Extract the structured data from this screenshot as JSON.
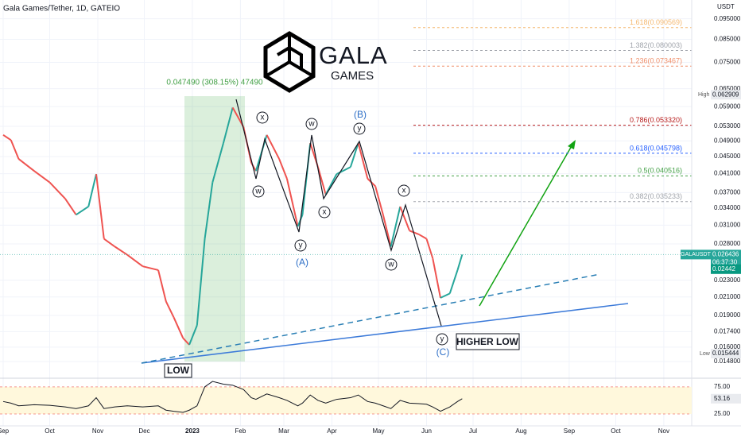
{
  "header": {
    "title": "Gala Games/Tether, 1D, GATEIO",
    "currency": "USDT"
  },
  "logo": {
    "name": "GALA",
    "sub": "GAMES"
  },
  "chart_data": [
    {
      "type": "line",
      "log_scale": true,
      "grid": true,
      "up_color": "#26a69a",
      "down_color": "#ef5350",
      "x": [
        0,
        5,
        10,
        20,
        30,
        40,
        47,
        55,
        60,
        65,
        72,
        80,
        90,
        100,
        105,
        110,
        116,
        120,
        125,
        130,
        135,
        142,
        148,
        155,
        160,
        163,
        170,
        178,
        183,
        190,
        193,
        198,
        203,
        208,
        215,
        224,
        229,
        235,
        240,
        245,
        250,
        256,
        262,
        268,
        273,
        277,
        282,
        288,
        293,
        296
      ],
      "series": [
        {
          "name": "GALAUSDT",
          "color": "#26a69a",
          "values": [
            0.0506,
            0.0492,
            0.0444,
            0.0416,
            0.0391,
            0.0358,
            0.0328,
            0.0343,
            0.0409,
            0.0288,
            0.0276,
            0.0264,
            0.0248,
            0.0243,
            0.0205,
            0.0188,
            0.0168,
            0.0162,
            0.018,
            0.0288,
            0.0391,
            0.0484,
            0.0587,
            0.0528,
            0.0435,
            0.0416,
            0.0506,
            0.0444,
            0.0399,
            0.0308,
            0.0328,
            0.0484,
            0.0425,
            0.0366,
            0.0409,
            0.0425,
            0.0484,
            0.0399,
            0.0383,
            0.0328,
            0.0276,
            0.0343,
            0.0301,
            0.0295,
            0.0288,
            0.0259,
            0.0209,
            0.0214,
            0.0243,
            0.026436
          ]
        }
      ],
      "xlim": [
        0,
        444
      ],
      "xticks": [
        {
          "value": 0,
          "label": "Sep"
        },
        {
          "value": 30,
          "label": "Oct"
        },
        {
          "value": 61,
          "label": "Nov"
        },
        {
          "value": 91,
          "label": "Dec"
        },
        {
          "value": 122,
          "label": "2023"
        },
        {
          "value": 153,
          "label": "Feb"
        },
        {
          "value": 181,
          "label": "Mar"
        },
        {
          "value": 212,
          "label": "Apr"
        },
        {
          "value": 242,
          "label": "May"
        },
        {
          "value": 273,
          "label": "Jun"
        },
        {
          "value": 303,
          "label": "Jul"
        },
        {
          "value": 334,
          "label": "Aug"
        },
        {
          "value": 365,
          "label": "Sep"
        },
        {
          "value": 395,
          "label": "Oct"
        },
        {
          "value": 426,
          "label": "Nov"
        }
      ],
      "ylim": [
        0.01387,
        0.1052
      ],
      "yticks": [
        {
          "value": 0.095,
          "label": "0.095000"
        },
        {
          "value": 0.085,
          "label": "0.085000"
        },
        {
          "value": 0.075,
          "label": "0.075000"
        },
        {
          "value": 0.065,
          "label": "0.065000"
        },
        {
          "value": 0.059,
          "label": "0.059000"
        },
        {
          "value": 0.053,
          "label": "0.053000"
        },
        {
          "value": 0.049,
          "label": "0.049000"
        },
        {
          "value": 0.045,
          "label": "0.045000"
        },
        {
          "value": 0.041,
          "label": "0.041000"
        },
        {
          "value": 0.037,
          "label": "0.037000"
        },
        {
          "value": 0.034,
          "label": "0.034000"
        },
        {
          "value": 0.031,
          "label": "0.031000"
        },
        {
          "value": 0.028,
          "label": "0.028000"
        },
        {
          "value": 0.023,
          "label": "0.023000"
        },
        {
          "value": 0.021,
          "label": "0.021000"
        },
        {
          "value": 0.019,
          "label": "0.019000"
        },
        {
          "value": 0.0174,
          "label": "0.017400"
        },
        {
          "value": 0.016,
          "label": "0.016000"
        },
        {
          "value": 0.0148,
          "label": "0.014800"
        }
      ],
      "fib_levels": [
        {
          "label": "1.618(0.090569)",
          "value": 0.090569,
          "color": "#f5b971"
        },
        {
          "label": "1.382(0.080003)",
          "value": 0.080003,
          "color": "#a0a4ab"
        },
        {
          "label": "1.236(0.073467)",
          "value": 0.073467,
          "color": "#f0906c"
        },
        {
          "label": "0.786(0.053320)",
          "value": 0.05332,
          "color": "#b71c1c"
        },
        {
          "label": "0.618(0.045798)",
          "value": 0.045798,
          "color": "#2962ff"
        },
        {
          "label": "0.5(0.040516)",
          "value": 0.040516,
          "color": "#43a047"
        },
        {
          "label": "0.382(0.035233)",
          "value": 0.035233,
          "color": "#a0a4ab"
        }
      ],
      "high": {
        "label": "High",
        "value": 0.062909
      },
      "low": {
        "label": "Low",
        "value": 0.015444
      },
      "countdown": "06:37:30",
      "ma_value": 0.02442,
      "range_note": "0.047490 (308.15%) 47490",
      "waves": {
        "circled": [
          "x",
          "w",
          "w",
          "x",
          "y",
          "y",
          "x",
          "w",
          "y"
        ],
        "degree": [
          "(A)",
          "(B)",
          "(C)"
        ]
      },
      "annotations": {
        "low": "LOW",
        "higher_low": "HIGHER LOW"
      }
    },
    {
      "type": "line",
      "x": [
        0,
        5,
        10,
        20,
        30,
        40,
        47,
        55,
        60,
        65,
        72,
        80,
        90,
        100,
        105,
        110,
        116,
        120,
        125,
        130,
        135,
        142,
        148,
        155,
        160,
        163,
        170,
        178,
        183,
        190,
        193,
        198,
        203,
        208,
        215,
        224,
        229,
        235,
        240,
        245,
        250,
        256,
        262,
        268,
        273,
        277,
        282,
        288,
        293,
        296
      ],
      "series": [
        {
          "color": "#131722",
          "values": [
            48,
            45,
            40,
            42,
            41,
            38,
            35,
            40,
            55,
            35,
            38,
            40,
            38,
            40,
            32,
            30,
            28,
            32,
            40,
            75,
            85,
            80,
            78,
            70,
            55,
            52,
            62,
            55,
            50,
            40,
            45,
            60,
            50,
            45,
            52,
            55,
            60,
            48,
            45,
            40,
            35,
            50,
            45,
            44,
            43,
            38,
            30,
            38,
            48,
            53.16
          ]
        }
      ],
      "xlim": [
        0,
        444
      ],
      "ylim": [
        6,
        88
      ],
      "yticks": [
        {
          "value": 75,
          "label": "75.00"
        },
        {
          "value": 25,
          "label": "25.00"
        }
      ]
    }
  ]
}
